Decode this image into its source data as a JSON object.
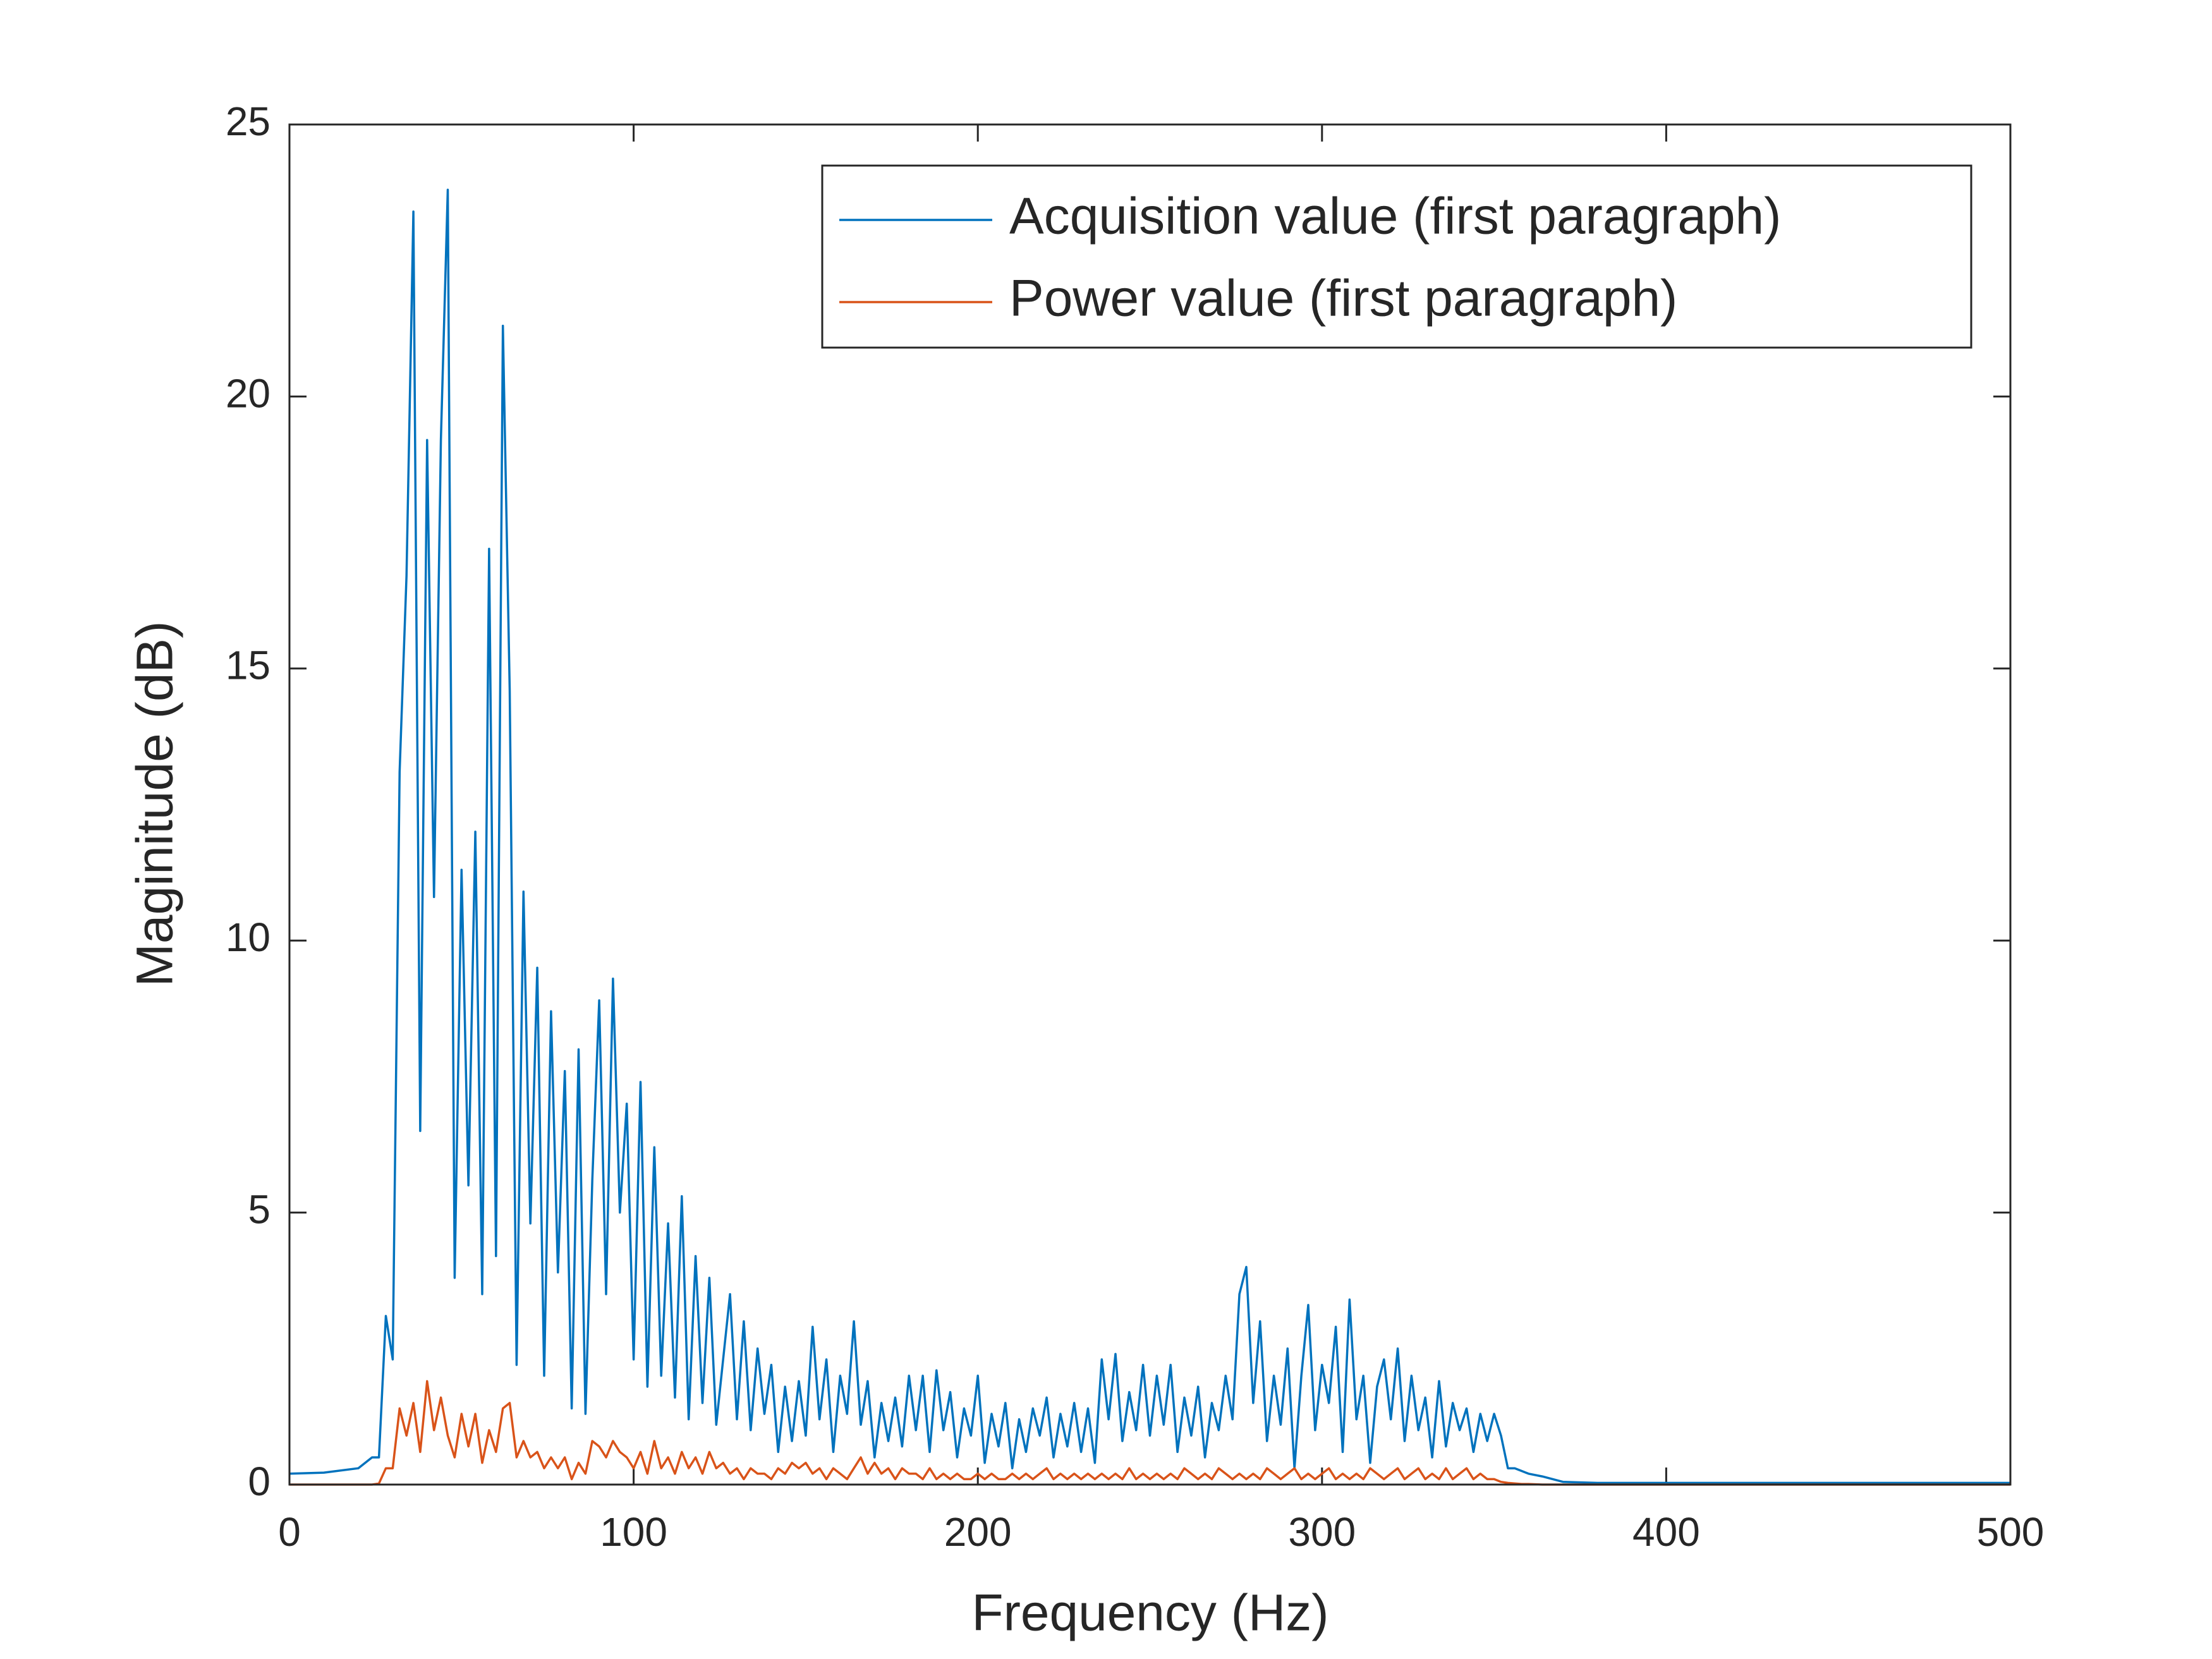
{
  "chart_data": {
    "type": "line",
    "xlabel": "Frequency (Hz)",
    "ylabel": "Maginitude (dB)",
    "xlim": [
      0,
      500
    ],
    "ylim": [
      0,
      25
    ],
    "xticks": [
      0,
      100,
      200,
      300,
      400,
      500
    ],
    "yticks": [
      0,
      5,
      10,
      15,
      20,
      25
    ],
    "legend": "upper right",
    "x": [
      0,
      10,
      20,
      24,
      26,
      28,
      30,
      32,
      34,
      36,
      38,
      40,
      42,
      44,
      46,
      48,
      50,
      52,
      54,
      56,
      58,
      60,
      62,
      64,
      66,
      68,
      70,
      72,
      74,
      76,
      78,
      80,
      82,
      84,
      86,
      88,
      90,
      92,
      94,
      96,
      98,
      100,
      102,
      104,
      106,
      108,
      110,
      112,
      114,
      116,
      118,
      120,
      122,
      124,
      126,
      128,
      130,
      132,
      134,
      136,
      138,
      140,
      142,
      144,
      146,
      148,
      150,
      152,
      154,
      156,
      158,
      160,
      162,
      164,
      166,
      168,
      170,
      172,
      174,
      176,
      178,
      180,
      182,
      184,
      186,
      188,
      190,
      192,
      194,
      196,
      198,
      200,
      202,
      204,
      206,
      208,
      210,
      212,
      214,
      216,
      218,
      220,
      222,
      224,
      226,
      228,
      230,
      232,
      234,
      236,
      238,
      240,
      242,
      244,
      246,
      248,
      250,
      252,
      254,
      256,
      258,
      260,
      262,
      264,
      266,
      268,
      270,
      272,
      274,
      276,
      278,
      280,
      282,
      284,
      286,
      288,
      290,
      292,
      294,
      296,
      298,
      300,
      302,
      304,
      306,
      308,
      310,
      312,
      314,
      316,
      318,
      320,
      322,
      324,
      326,
      328,
      330,
      332,
      334,
      336,
      338,
      340,
      342,
      344,
      346,
      348,
      350,
      352,
      354,
      356,
      358,
      360,
      364,
      370,
      380,
      400,
      450,
      500
    ],
    "series": [
      {
        "name": "Acquisition value (first paragraph)",
        "color": "#0072BD",
        "values": [
          0.2,
          0.22,
          0.3,
          0.5,
          0.5,
          3.1,
          2.3,
          13.1,
          16.7,
          23.4,
          6.5,
          19.2,
          10.8,
          19.2,
          23.8,
          3.8,
          11.3,
          5.5,
          12.0,
          3.5,
          17.2,
          4.2,
          21.3,
          14.6,
          2.2,
          10.9,
          4.8,
          9.5,
          2.0,
          8.7,
          3.9,
          7.6,
          1.4,
          8.0,
          1.3,
          5.6,
          8.9,
          3.5,
          9.3,
          5.0,
          7.0,
          2.3,
          7.4,
          1.8,
          6.2,
          2.0,
          4.8,
          1.6,
          5.3,
          1.2,
          4.2,
          1.5,
          3.8,
          1.1,
          2.3,
          3.5,
          1.2,
          3.0,
          1.0,
          2.5,
          1.3,
          2.2,
          0.6,
          1.8,
          0.8,
          1.9,
          0.9,
          2.9,
          1.2,
          2.3,
          0.6,
          2.0,
          1.3,
          3.0,
          1.1,
          1.9,
          0.5,
          1.5,
          0.8,
          1.6,
          0.7,
          2.0,
          1.0,
          2.0,
          0.6,
          2.1,
          1.0,
          1.7,
          0.5,
          1.4,
          0.9,
          2.0,
          0.4,
          1.3,
          0.7,
          1.5,
          0.3,
          1.2,
          0.6,
          1.4,
          0.9,
          1.6,
          0.5,
          1.3,
          0.7,
          1.5,
          0.6,
          1.4,
          0.4,
          2.3,
          1.2,
          2.4,
          0.8,
          1.7,
          1.0,
          2.2,
          0.9,
          2.0,
          1.1,
          2.2,
          0.6,
          1.6,
          0.9,
          1.8,
          0.5,
          1.5,
          1.0,
          2.0,
          1.2,
          3.5,
          4.0,
          1.5,
          3.0,
          0.8,
          2.0,
          1.1,
          2.5,
          0.3,
          2.0,
          3.3,
          1.0,
          2.2,
          1.5,
          2.9,
          0.6,
          3.4,
          1.2,
          2.0,
          0.4,
          1.8,
          2.3,
          1.2,
          2.5,
          0.8,
          2.0,
          1.0,
          1.6,
          0.5,
          1.9,
          0.7,
          1.5,
          1.0,
          1.4,
          0.6,
          1.3,
          0.8,
          1.3,
          0.9,
          0.3,
          0.3,
          0.25,
          0.2,
          0.15,
          0.05,
          0.03,
          0.03,
          0.03,
          0.03
        ]
      },
      {
        "name": "Power value (first paragraph)",
        "color": "#D95319",
        "values": [
          0,
          0,
          0,
          0,
          0.02,
          0.3,
          0.3,
          1.4,
          0.9,
          1.5,
          0.6,
          1.9,
          1.0,
          1.6,
          0.9,
          0.5,
          1.3,
          0.7,
          1.3,
          0.4,
          1.0,
          0.6,
          1.4,
          1.5,
          0.5,
          0.8,
          0.5,
          0.6,
          0.3,
          0.5,
          0.3,
          0.5,
          0.1,
          0.4,
          0.2,
          0.8,
          0.7,
          0.5,
          0.8,
          0.6,
          0.5,
          0.3,
          0.6,
          0.2,
          0.8,
          0.3,
          0.5,
          0.2,
          0.6,
          0.3,
          0.5,
          0.2,
          0.6,
          0.3,
          0.4,
          0.2,
          0.3,
          0.1,
          0.3,
          0.2,
          0.2,
          0.1,
          0.3,
          0.2,
          0.4,
          0.3,
          0.4,
          0.2,
          0.3,
          0.1,
          0.3,
          0.2,
          0.1,
          0.3,
          0.5,
          0.2,
          0.4,
          0.2,
          0.3,
          0.1,
          0.3,
          0.2,
          0.2,
          0.1,
          0.3,
          0.1,
          0.2,
          0.1,
          0.2,
          0.1,
          0.1,
          0.2,
          0.1,
          0.2,
          0.1,
          0.1,
          0.2,
          0.1,
          0.2,
          0.1,
          0.2,
          0.3,
          0.1,
          0.2,
          0.1,
          0.2,
          0.1,
          0.2,
          0.1,
          0.2,
          0.1,
          0.2,
          0.1,
          0.3,
          0.1,
          0.2,
          0.1,
          0.2,
          0.1,
          0.2,
          0.1,
          0.3,
          0.2,
          0.1,
          0.2,
          0.1,
          0.3,
          0.2,
          0.1,
          0.2,
          0.1,
          0.2,
          0.1,
          0.3,
          0.2,
          0.1,
          0.2,
          0.3,
          0.1,
          0.2,
          0.1,
          0.2,
          0.3,
          0.1,
          0.2,
          0.1,
          0.2,
          0.1,
          0.3,
          0.2,
          0.1,
          0.2,
          0.3,
          0.1,
          0.2,
          0.3,
          0.1,
          0.2,
          0.1,
          0.3,
          0.1,
          0.2,
          0.3,
          0.1,
          0.2,
          0.1,
          0.1,
          0.05,
          0.03,
          0.02,
          0.01,
          0.01,
          0,
          0,
          0,
          0,
          0,
          0
        ]
      }
    ]
  }
}
